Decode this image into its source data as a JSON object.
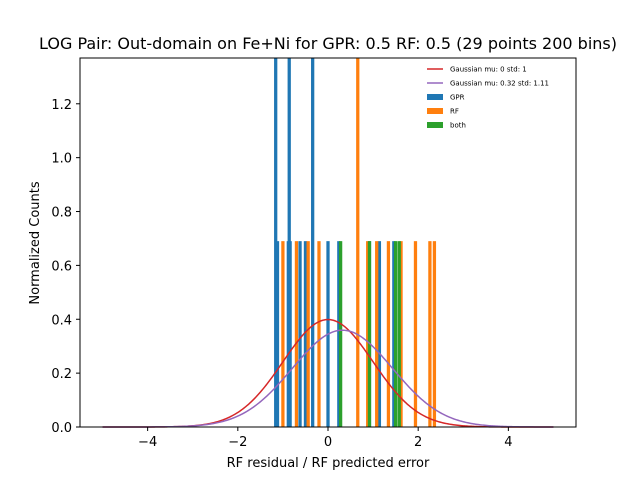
{
  "chart_data": {
    "type": "bar",
    "title": "LOG Pair: Out-domain on Fe+Ni for GPR: 0.5 RF: 0.5 (29 points 200 bins)",
    "xlabel": "RF residual / RF predicted error",
    "ylabel": "Normalized Counts",
    "xlim": [
      -5.5,
      5.5
    ],
    "ylim": [
      0,
      1.37
    ],
    "xticks": [
      -4,
      -2,
      0,
      2,
      4
    ],
    "yticks": [
      0.0,
      0.2,
      0.4,
      0.6,
      0.8,
      1.0,
      1.2
    ],
    "ytick_labels": [
      "0.0",
      "0.2",
      "0.4",
      "0.6",
      "0.8",
      "1.0",
      "1.2"
    ],
    "bin_width": 0.0725,
    "legend_position": "upper right",
    "series": [
      {
        "name": "Gaussian mu: 0 std: 1",
        "type": "line",
        "color": "#d62728",
        "mu": 0,
        "std": 1,
        "x_range": [
          -5,
          5
        ]
      },
      {
        "name": "Gaussian mu: 0.32 std: 1.11",
        "type": "line",
        "color": "#9467bd",
        "mu": 0.32,
        "std": 1.11,
        "x_range": [
          -5,
          5
        ]
      },
      {
        "name": "GPR",
        "type": "bar",
        "color": "#1f77b4",
        "bins": [
          {
            "x": -1.16,
            "value": 1.37
          },
          {
            "x": -1.12,
            "value": 0.69
          },
          {
            "x": -0.88,
            "value": 0.69
          },
          {
            "x": -0.86,
            "value": 1.37
          },
          {
            "x": -0.84,
            "value": 0.69
          },
          {
            "x": -0.62,
            "value": 0.69
          },
          {
            "x": -0.5,
            "value": 0.69
          },
          {
            "x": -0.34,
            "value": 1.37
          },
          {
            "x": 0.0,
            "value": 0.69
          },
          {
            "x": 0.24,
            "value": 0.69
          },
          {
            "x": 0.92,
            "value": 0.69
          },
          {
            "x": 1.14,
            "value": 0.69
          },
          {
            "x": 1.46,
            "value": 0.69
          }
        ]
      },
      {
        "name": "RF",
        "type": "bar",
        "color": "#ff7f0e",
        "bins": [
          {
            "x": -1.0,
            "value": 0.69
          },
          {
            "x": -0.7,
            "value": 0.69
          },
          {
            "x": -0.44,
            "value": 0.69
          },
          {
            "x": -0.2,
            "value": 0.69
          },
          {
            "x": 0.66,
            "value": 1.37
          },
          {
            "x": 0.88,
            "value": 0.69
          },
          {
            "x": 1.08,
            "value": 0.69
          },
          {
            "x": 1.34,
            "value": 0.69
          },
          {
            "x": 1.62,
            "value": 0.69
          },
          {
            "x": 1.94,
            "value": 0.69
          },
          {
            "x": 2.26,
            "value": 0.69
          },
          {
            "x": 2.36,
            "value": 0.69
          }
        ]
      },
      {
        "name": "both",
        "type": "bar",
        "color": "#2ca02c",
        "bins": [
          {
            "x": 0.28,
            "value": 0.69
          },
          {
            "x": 0.92,
            "value": 0.69
          },
          {
            "x": 1.5,
            "value": 0.69
          },
          {
            "x": 1.58,
            "value": 0.69
          }
        ]
      }
    ]
  }
}
